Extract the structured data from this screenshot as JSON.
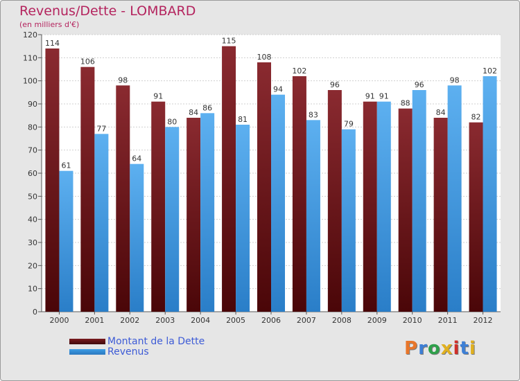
{
  "header": {
    "title": "Revenus/Dette - LOMBARD",
    "subtitle": "(en milliers d'€)"
  },
  "colors": {
    "title": "#b4245e",
    "dette": "#7a1a1e",
    "revenus": "#3d9ee6",
    "background": "#e6e6e6",
    "axis": "#555555"
  },
  "legend": {
    "items": [
      {
        "label": "Montant de la Dette",
        "color": "#7a1a1e"
      },
      {
        "label": "Revenus",
        "color": "#3d9ee6"
      }
    ]
  },
  "logo": {
    "text": "Proxiti",
    "letter_colors": [
      "#e8762a",
      "#3d7fd6",
      "#2ea04a",
      "#e0b020",
      "#d0302a",
      "#3d7fd6",
      "#e0b020"
    ]
  },
  "chart_data": {
    "type": "bar",
    "title": "Revenus/Dette - LOMBARD",
    "subtitle": "(en milliers d'€)",
    "categories": [
      "2000",
      "2001",
      "2002",
      "2003",
      "2004",
      "2005",
      "2006",
      "2007",
      "2008",
      "2009",
      "2010",
      "2011",
      "2012"
    ],
    "series": [
      {
        "name": "Montant de la Dette",
        "values": [
          114,
          106,
          98,
          91,
          84,
          115,
          108,
          102,
          96,
          91,
          88,
          84,
          82
        ]
      },
      {
        "name": "Revenus",
        "values": [
          61,
          77,
          64,
          80,
          86,
          81,
          94,
          83,
          79,
          91,
          96,
          98,
          102
        ]
      }
    ],
    "ylim": [
      0,
      120
    ],
    "yticks": [
      0,
      10,
      20,
      30,
      40,
      50,
      60,
      70,
      80,
      90,
      100,
      110,
      120
    ],
    "grid": true,
    "legend_position": "bottom-left"
  }
}
